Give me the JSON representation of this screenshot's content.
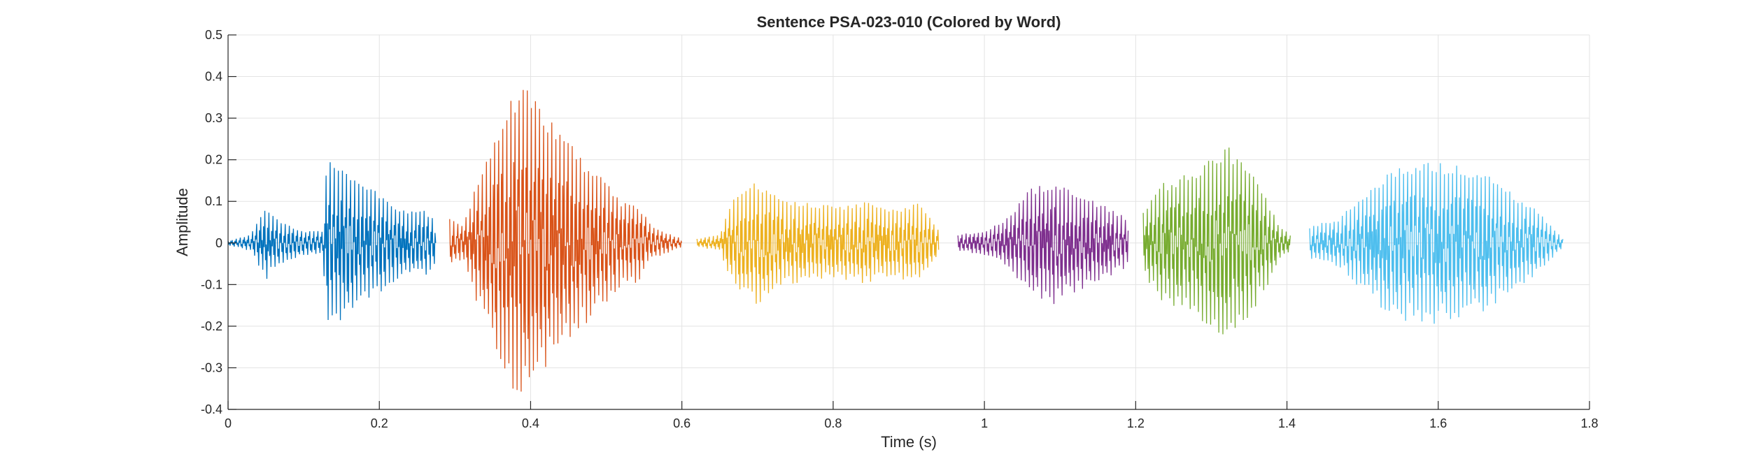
{
  "chart_data": {
    "type": "line",
    "title": "Sentence PSA-023-010 (Colored by Word)",
    "xlabel": "Time (s)",
    "ylabel": "Amplitude",
    "xlim": [
      0,
      1.8
    ],
    "ylim": [
      -0.4,
      0.5
    ],
    "xticks": [
      0,
      0.2,
      0.4,
      0.6,
      0.8,
      1,
      1.2,
      1.4,
      1.6,
      1.8
    ],
    "xtick_labels": [
      "0",
      "0.2",
      "0.4",
      "0.6",
      "0.8",
      "1",
      "1.2",
      "1.4",
      "1.6",
      "1.8"
    ],
    "yticks": [
      -0.4,
      -0.3,
      -0.2,
      -0.1,
      0,
      0.1,
      0.2,
      0.3,
      0.4,
      0.5
    ],
    "ytick_labels": [
      "-0.4",
      "-0.3",
      "-0.2",
      "-0.1",
      "0",
      "0.1",
      "0.2",
      "0.3",
      "0.4",
      "0.5"
    ],
    "grid": true,
    "series": [
      {
        "color": "#0072BD",
        "t_start": 0.0,
        "t_end": 0.275,
        "envelope": [
          [
            0.0,
            0.005
          ],
          [
            0.03,
            0.02
          ],
          [
            0.05,
            0.09
          ],
          [
            0.07,
            0.05
          ],
          [
            0.1,
            0.03
          ],
          [
            0.125,
            0.03
          ],
          [
            0.13,
            0.2
          ],
          [
            0.15,
            0.2
          ],
          [
            0.17,
            0.15
          ],
          [
            0.2,
            0.12
          ],
          [
            0.23,
            0.08
          ],
          [
            0.26,
            0.08
          ],
          [
            0.275,
            0.05
          ]
        ]
      },
      {
        "color": "#D95319",
        "t_start": 0.293,
        "t_end": 0.6,
        "envelope": [
          [
            0.293,
            0.06
          ],
          [
            0.31,
            0.04
          ],
          [
            0.33,
            0.15
          ],
          [
            0.36,
            0.3
          ],
          [
            0.39,
            0.4
          ],
          [
            0.41,
            0.33
          ],
          [
            0.44,
            0.27
          ],
          [
            0.47,
            0.2
          ],
          [
            0.5,
            0.15
          ],
          [
            0.52,
            0.1
          ],
          [
            0.54,
            0.1
          ],
          [
            0.56,
            0.04
          ],
          [
            0.6,
            0.01
          ]
        ]
      },
      {
        "color": "#EDB120",
        "t_start": 0.62,
        "t_end": 0.94,
        "envelope": [
          [
            0.62,
            0.01
          ],
          [
            0.65,
            0.02
          ],
          [
            0.67,
            0.12
          ],
          [
            0.7,
            0.15
          ],
          [
            0.73,
            0.11
          ],
          [
            0.76,
            0.1
          ],
          [
            0.8,
            0.09
          ],
          [
            0.84,
            0.1
          ],
          [
            0.88,
            0.08
          ],
          [
            0.91,
            0.1
          ],
          [
            0.93,
            0.06
          ],
          [
            0.94,
            0.03
          ]
        ]
      },
      {
        "color": "#7E2F8E",
        "t_start": 0.965,
        "t_end": 1.19,
        "envelope": [
          [
            0.965,
            0.02
          ],
          [
            1.0,
            0.03
          ],
          [
            1.03,
            0.06
          ],
          [
            1.06,
            0.13
          ],
          [
            1.09,
            0.15
          ],
          [
            1.12,
            0.12
          ],
          [
            1.16,
            0.09
          ],
          [
            1.19,
            0.06
          ]
        ]
      },
      {
        "color": "#77AC30",
        "t_start": 1.21,
        "t_end": 1.405,
        "envelope": [
          [
            1.21,
            0.08
          ],
          [
            1.23,
            0.14
          ],
          [
            1.26,
            0.16
          ],
          [
            1.29,
            0.19
          ],
          [
            1.32,
            0.24
          ],
          [
            1.35,
            0.18
          ],
          [
            1.37,
            0.12
          ],
          [
            1.39,
            0.04
          ],
          [
            1.405,
            0.02
          ]
        ]
      },
      {
        "color": "#4DBEEE",
        "t_start": 1.43,
        "t_end": 1.765,
        "envelope": [
          [
            1.43,
            0.04
          ],
          [
            1.47,
            0.06
          ],
          [
            1.5,
            0.12
          ],
          [
            1.54,
            0.18
          ],
          [
            1.58,
            0.2
          ],
          [
            1.62,
            0.19
          ],
          [
            1.66,
            0.17
          ],
          [
            1.7,
            0.12
          ],
          [
            1.73,
            0.08
          ],
          [
            1.765,
            0.01
          ]
        ]
      }
    ]
  }
}
